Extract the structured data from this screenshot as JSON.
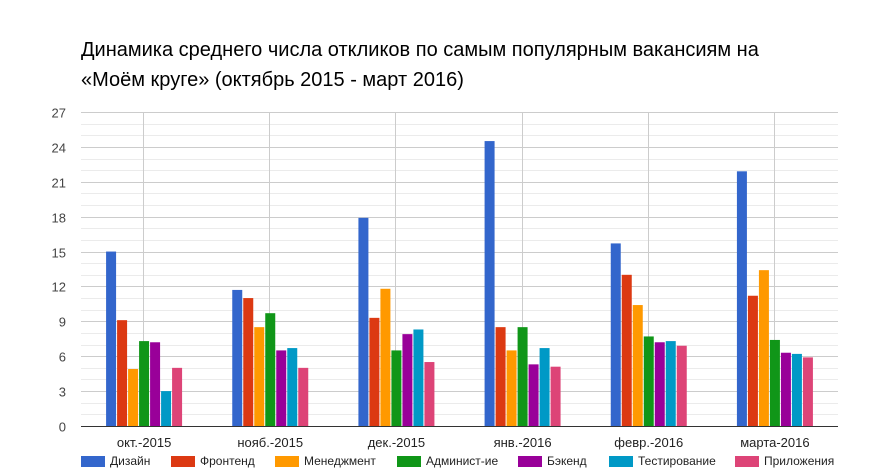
{
  "title": {
    "line1": "Динамика среднего числа откликов по самым популярным вакансиям на",
    "line2": "«Моём круге» (октябрь 2015 - март 2016)"
  },
  "chart_data": {
    "type": "bar",
    "title": "Динамика среднего числа откликов по самым популярным вакансиям на «Моём круге» (октябрь 2015 - март 2016)",
    "xlabel": "",
    "ylabel": "",
    "ylim": [
      0,
      27
    ],
    "yticks": [
      0,
      3,
      6,
      9,
      12,
      15,
      18,
      21,
      24,
      27
    ],
    "grid": true,
    "legend_position": "bottom",
    "categories": [
      "окт.-2015",
      "нояб.-2015",
      "дек.-2015",
      "янв.-2016",
      "февр.-2016",
      "марта-2016"
    ],
    "series": [
      {
        "name": "Дизайн",
        "color": "#3366cc",
        "values": [
          15.0,
          11.7,
          17.9,
          24.5,
          15.7,
          21.9
        ]
      },
      {
        "name": "Фронтенд",
        "color": "#dc3912",
        "values": [
          9.1,
          11.0,
          9.3,
          8.5,
          13.0,
          11.2
        ]
      },
      {
        "name": "Менеджмент",
        "color": "#ff9900",
        "values": [
          4.9,
          8.5,
          11.8,
          6.5,
          10.4,
          13.4
        ]
      },
      {
        "name": "Админист-ие",
        "color": "#109618",
        "values": [
          7.3,
          9.7,
          6.5,
          8.5,
          7.7,
          7.4
        ]
      },
      {
        "name": "Бэкенд",
        "color": "#990099",
        "values": [
          7.2,
          6.5,
          7.9,
          5.3,
          7.2,
          6.3
        ]
      },
      {
        "name": "Тестирование",
        "color": "#0099c6",
        "values": [
          3.0,
          6.7,
          8.3,
          6.7,
          7.3,
          6.2
        ]
      },
      {
        "name": "Приложения",
        "color": "#dd4477",
        "values": [
          5.0,
          5.0,
          5.5,
          5.1,
          6.9,
          5.9
        ]
      }
    ]
  }
}
